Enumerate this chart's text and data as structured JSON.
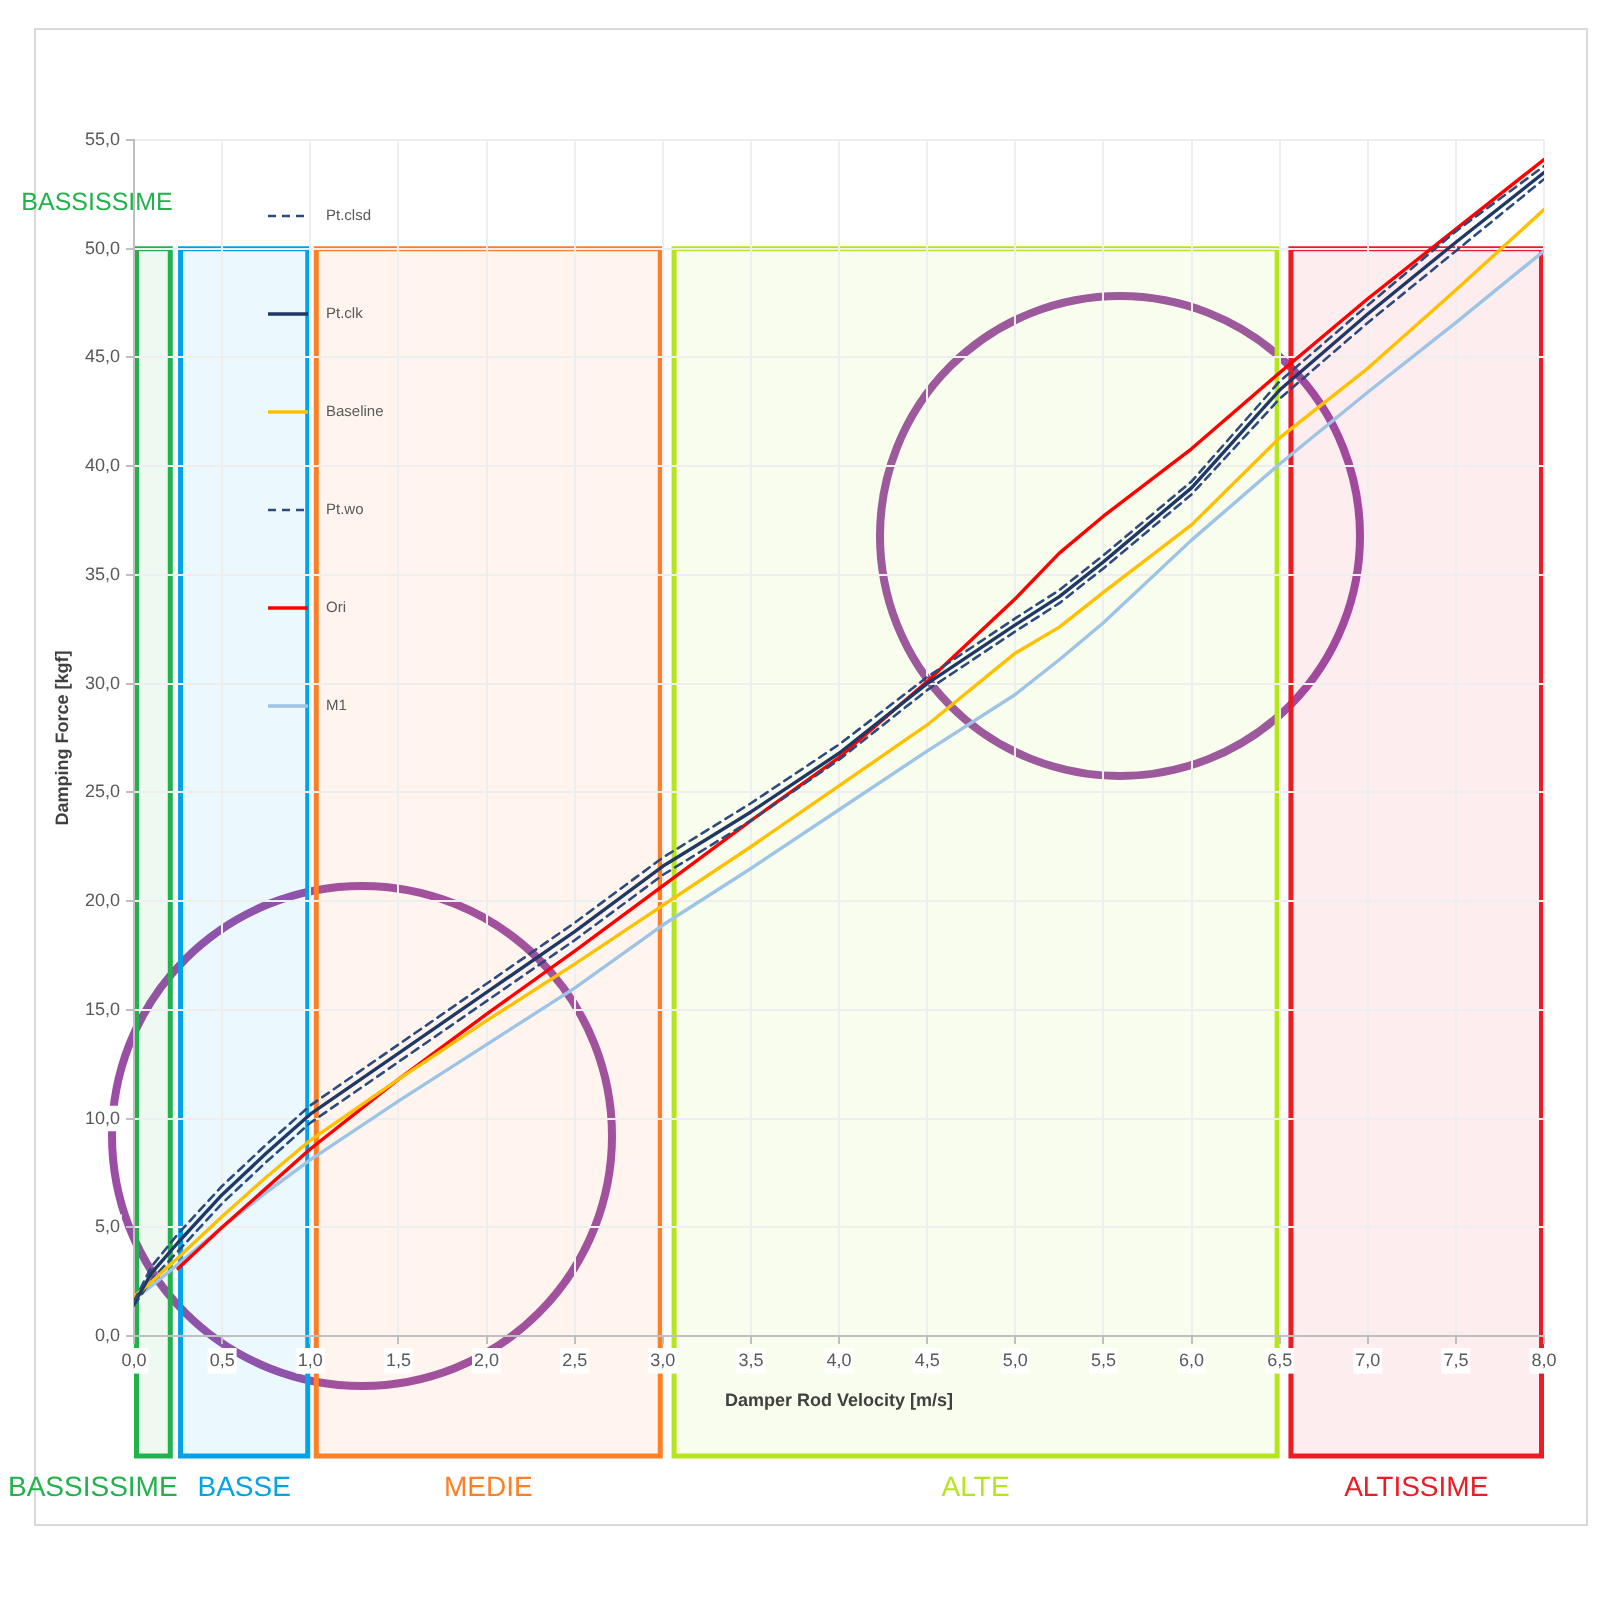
{
  "chart_data": {
    "type": "line",
    "xlabel": "Damper Rod Velocity [m/s]",
    "ylabel": "Damping Force [kgf]",
    "x": [
      0,
      0.1,
      0.25,
      0.5,
      0.75,
      1.0,
      1.5,
      2.0,
      2.5,
      3.0,
      3.5,
      4.0,
      4.5,
      5.0,
      5.25,
      5.5,
      6.0,
      6.5,
      7.0,
      7.5,
      8.0
    ],
    "series": [
      {
        "name": "Pt.clsd",
        "color": "#2e4a7d",
        "line_style": "dashed",
        "values": [
          1.6,
          3.2,
          4.7,
          6.9,
          8.8,
          10.6,
          13.4,
          16.2,
          19.0,
          22.0,
          24.5,
          27.2,
          30.3,
          33.0,
          34.3,
          35.9,
          39.3,
          43.9,
          47.4,
          50.8,
          53.8
        ]
      },
      {
        "name": "Pt.clk",
        "color": "#1f3864",
        "values": [
          1.5,
          2.9,
          4.3,
          6.5,
          8.4,
          10.2,
          13.0,
          15.8,
          18.6,
          21.6,
          24.1,
          26.8,
          30.0,
          32.7,
          34.0,
          35.6,
          39.0,
          43.5,
          47.0,
          50.3,
          53.5
        ]
      },
      {
        "name": "Baseline",
        "color": "#ffc000",
        "values": [
          1.8,
          2.5,
          3.6,
          5.5,
          7.3,
          9.0,
          11.8,
          14.5,
          17.1,
          19.8,
          22.5,
          25.3,
          28.1,
          31.4,
          32.6,
          34.2,
          37.3,
          41.3,
          44.5,
          48.1,
          51.8
        ]
      },
      {
        "name": "Pt.wo",
        "color": "#2e4a7d",
        "line_style": "dashed",
        "values": [
          1.4,
          2.6,
          3.9,
          6.1,
          8.0,
          9.8,
          12.6,
          15.4,
          18.2,
          21.2,
          23.7,
          26.5,
          29.7,
          32.4,
          33.7,
          35.3,
          38.7,
          43.1,
          46.6,
          49.9,
          53.2
        ]
      },
      {
        "name": "Ori",
        "color": "#ff0000",
        "values": [
          null,
          null,
          3.1,
          5.0,
          6.8,
          8.6,
          11.8,
          14.8,
          17.7,
          20.7,
          23.7,
          26.6,
          30.1,
          33.9,
          36.0,
          37.7,
          40.8,
          44.3,
          47.7,
          50.9,
          54.1
        ]
      },
      {
        "name": "M1",
        "color": "#9dc3e6",
        "values": [
          1.7,
          2.3,
          3.3,
          5.0,
          6.6,
          8.1,
          10.8,
          13.4,
          16.0,
          18.9,
          21.5,
          24.2,
          26.9,
          29.5,
          31.1,
          32.8,
          36.6,
          40.1,
          43.4,
          46.6,
          49.9
        ]
      }
    ],
    "xlim": [
      0,
      8
    ],
    "xticks": [
      {
        "value": 0,
        "label": "0,0"
      },
      {
        "value": 0.5,
        "label": "0,5"
      },
      {
        "value": 1,
        "label": "1,0"
      },
      {
        "value": 1.5,
        "label": "1,5"
      },
      {
        "value": 2,
        "label": "2,0"
      },
      {
        "value": 2.5,
        "label": "2,5"
      },
      {
        "value": 3,
        "label": "3,0"
      },
      {
        "value": 3.5,
        "label": "3,5"
      },
      {
        "value": 4,
        "label": "4,0"
      },
      {
        "value": 4.5,
        "label": "4,5"
      },
      {
        "value": 5,
        "label": "5,0"
      },
      {
        "value": 5.5,
        "label": "5,5"
      },
      {
        "value": 6,
        "label": "6,0"
      },
      {
        "value": 6.5,
        "label": "6,5"
      },
      {
        "value": 7,
        "label": "7,0"
      },
      {
        "value": 7.5,
        "label": "7,5"
      },
      {
        "value": 8,
        "label": "8,0"
      }
    ],
    "ylim": [
      0,
      55
    ],
    "yticks": [
      {
        "value": 0,
        "label": "0,0"
      },
      {
        "value": 5,
        "label": "5,0"
      },
      {
        "value": 10,
        "label": "10,0"
      },
      {
        "value": 15,
        "label": "15,0"
      },
      {
        "value": 20,
        "label": "20,0"
      },
      {
        "value": 25,
        "label": "25,0"
      },
      {
        "value": 30,
        "label": "30,0"
      },
      {
        "value": 35,
        "label": "35,0"
      },
      {
        "value": 40,
        "label": "40,0"
      },
      {
        "value": 45,
        "label": "45,0"
      },
      {
        "value": 50,
        "label": "50,0"
      },
      {
        "value": 55,
        "label": "55,0"
      }
    ],
    "bands": [
      {
        "axis": "x",
        "from": 0.0,
        "to": 0.22,
        "label": "BASSISSIME",
        "color": "#22b14c"
      },
      {
        "axis": "x",
        "from": 0.25,
        "to": 1.0,
        "label": "BASSE",
        "color": "#00a2e8"
      },
      {
        "axis": "x",
        "from": 1.02,
        "to": 3.0,
        "label": "MEDIE",
        "color": "#ff7f27"
      },
      {
        "axis": "x",
        "from": 3.05,
        "to": 6.5,
        "label": "ALTE",
        "color": "#b5e61d"
      },
      {
        "axis": "x",
        "from": 6.55,
        "to": 8.0,
        "label": "ALTISSIME",
        "color": "#ed1c24"
      }
    ],
    "annotations": [
      "BASSISSIME"
    ],
    "grid": true,
    "legend": "top left",
    "marker": "none",
    "line_style": "solid"
  }
}
